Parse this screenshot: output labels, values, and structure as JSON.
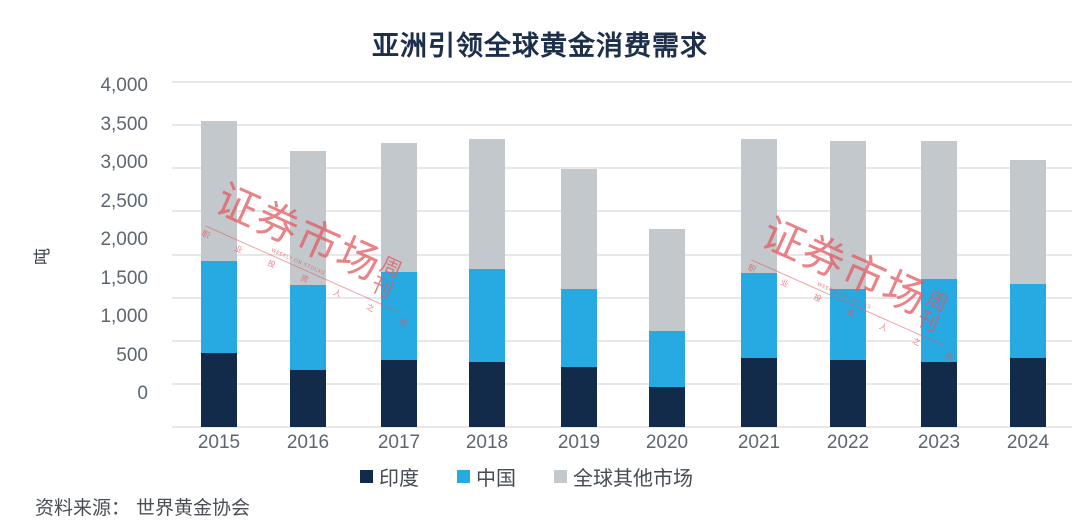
{
  "title": "亚洲引领全球黄金消费需求",
  "source": "资料来源：  世界黄金协会",
  "y_unit": "吨",
  "watermark": {
    "main": "证券市场",
    "side": "周刊",
    "sub": "职业投资人之选",
    "en": "WEEKLY ON STOCKS"
  },
  "colors": {
    "india": "#132b4a",
    "china": "#27a9e1",
    "other": "#c2c8cc",
    "grid": "#e6e8ea"
  },
  "legend": [
    {
      "label": "印度",
      "color": "#132b4a"
    },
    {
      "label": "中国",
      "color": "#27a9e1"
    },
    {
      "label": "全球其他市场",
      "color": "#c2c8cc"
    }
  ],
  "y_ticks": [
    "4,000",
    "3,500",
    "3,000",
    "2,500",
    "2,000",
    "1,500",
    "1,000",
    "500",
    "0"
  ],
  "chart_data": {
    "type": "bar",
    "stacked": true,
    "title": "亚洲引领全球黄金消费需求",
    "xlabel": "",
    "ylabel": "吨",
    "ylim": [
      0,
      4000
    ],
    "grid": true,
    "legend_position": "bottom",
    "categories": [
      "2015",
      "2016",
      "2017",
      "2018",
      "2019",
      "2020",
      "2021",
      "2022",
      "2023",
      "2024"
    ],
    "series": [
      {
        "name": "印度",
        "color": "#132b4a",
        "values": [
          860,
          660,
          780,
          750,
          690,
          460,
          800,
          780,
          750,
          800
        ]
      },
      {
        "name": "中国",
        "color": "#27a9e1",
        "values": [
          1060,
          990,
          1020,
          1080,
          910,
          650,
          990,
          820,
          970,
          860
        ]
      },
      {
        "name": "全球其他市场",
        "color": "#c2c8cc",
        "values": [
          1630,
          1550,
          1490,
          1510,
          1390,
          1190,
          1550,
          1720,
          1600,
          1430
        ]
      }
    ],
    "totals": [
      3550,
      3200,
      3290,
      3340,
      2990,
      2300,
      3340,
      3320,
      3320,
      3090
    ],
    "annotations": [
      "资料来源：世界黄金协会",
      "watermark: 证券市场周刊"
    ]
  }
}
